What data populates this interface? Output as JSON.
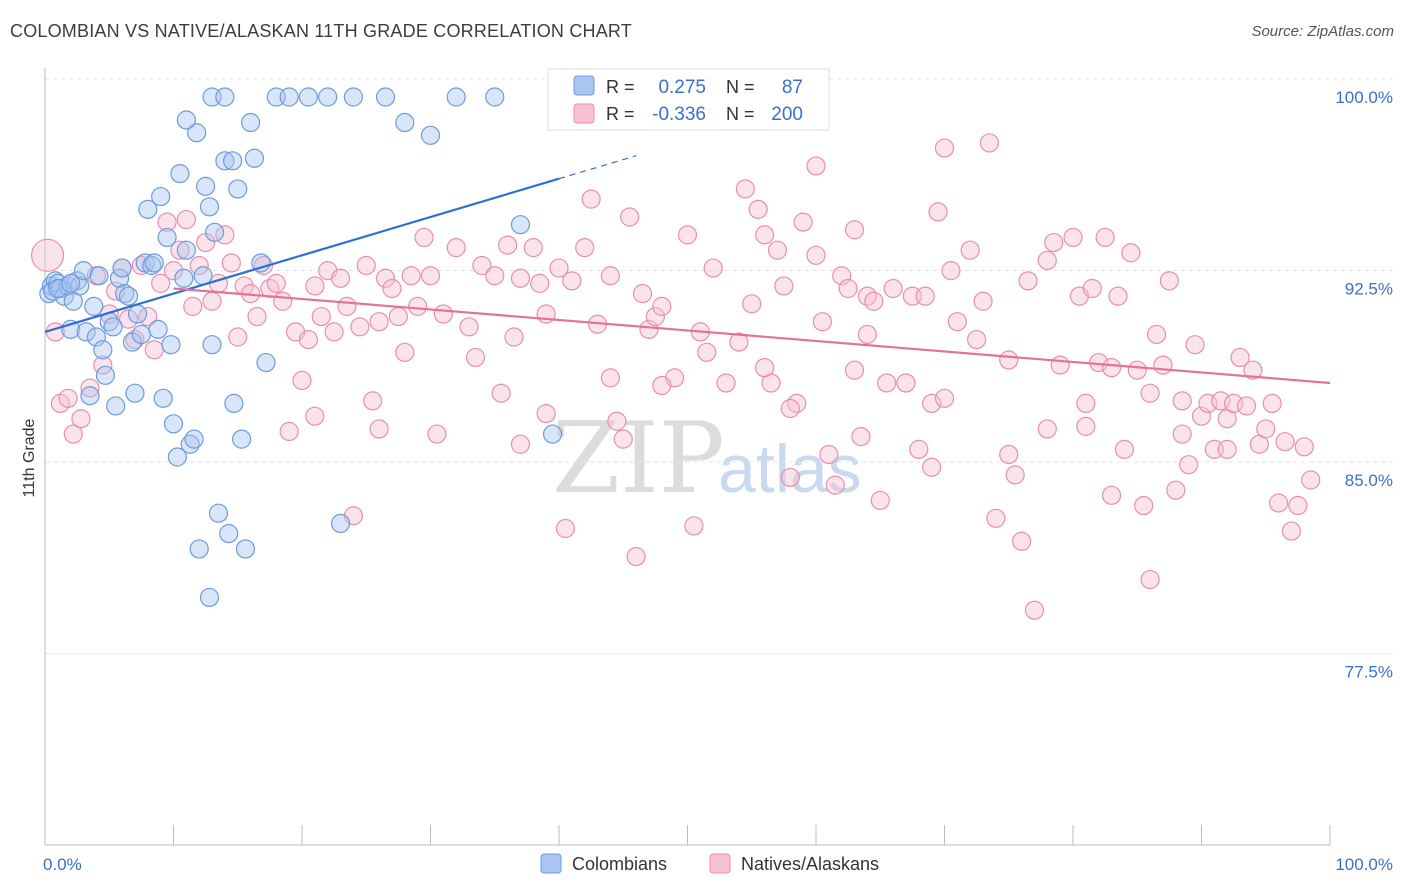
{
  "title": "COLOMBIAN VS NATIVE/ALASKAN 11TH GRADE CORRELATION CHART",
  "source": "Source: ZipAtlas.com",
  "watermark": {
    "zip": "ZIP",
    "atlas": "atlas"
  },
  "colors": {
    "blue": "#6b9be0",
    "blue_fill": "#aac6f0",
    "blue_line": "#2f6fd1",
    "pink": "#e98ead",
    "pink_fill": "#f7c2d4",
    "pink_line": "#e4719c",
    "axis_text": "#3a6fd0"
  },
  "legend": {
    "rows": [
      {
        "r_label": "R =",
        "r_value": "0.275",
        "n_label": "N =",
        "n_value": "87",
        "series": "blue"
      },
      {
        "r_label": "R =",
        "r_value": "-0.336",
        "n_label": "N =",
        "n_value": "200",
        "series": "pink"
      }
    ]
  },
  "bottom_legend": [
    {
      "label": "Colombians",
      "series": "blue"
    },
    {
      "label": "Natives/Alaskans",
      "series": "pink"
    }
  ],
  "chart_data": {
    "type": "scatter",
    "title": "COLOMBIAN VS NATIVE/ALASKAN 11TH GRADE CORRELATION CHART",
    "xlabel": "",
    "ylabel": "11th Grade",
    "xlim": [
      0,
      100
    ],
    "ylim": [
      70,
      100.7
    ],
    "x_tick_labels": [
      "0.0%",
      "100.0%"
    ],
    "y_ticks": [
      77.5,
      85.0,
      92.5,
      100.0
    ],
    "y_tick_labels": [
      "77.5%",
      "85.0%",
      "92.5%",
      "100.0%"
    ],
    "grid": true,
    "legend_position": "top-center",
    "series": [
      {
        "name": "Colombians",
        "color": "blue",
        "trend": {
          "x0": 0,
          "y0": 90.8,
          "x1": 40,
          "y1": 96.8,
          "dashed_to_x": 46
        },
        "points": [
          [
            0.3,
            92.3
          ],
          [
            0.5,
            92.6
          ],
          [
            0.8,
            92.8
          ],
          [
            0.6,
            92.4
          ],
          [
            1.0,
            92.7
          ],
          [
            1.2,
            92.5
          ],
          [
            1.5,
            92.2
          ],
          [
            1.8,
            92.6
          ],
          [
            2.0,
            90.9
          ],
          [
            2.2,
            92.0
          ],
          [
            2.5,
            92.8
          ],
          [
            2.7,
            92.6
          ],
          [
            3.0,
            93.2
          ],
          [
            3.2,
            90.8
          ],
          [
            3.5,
            88.3
          ],
          [
            3.8,
            91.8
          ],
          [
            4.0,
            90.6
          ],
          [
            4.2,
            93.0
          ],
          [
            4.5,
            90.1
          ],
          [
            4.7,
            89.1
          ],
          [
            5.0,
            91.2
          ],
          [
            5.3,
            91.0
          ],
          [
            5.5,
            87.9
          ],
          [
            5.8,
            92.9
          ],
          [
            6.0,
            93.3
          ],
          [
            6.2,
            92.3
          ],
          [
            6.5,
            92.2
          ],
          [
            6.8,
            90.4
          ],
          [
            7.0,
            88.4
          ],
          [
            7.2,
            91.5
          ],
          [
            7.5,
            90.7
          ],
          [
            7.8,
            93.5
          ],
          [
            8.0,
            95.6
          ],
          [
            8.3,
            93.4
          ],
          [
            8.5,
            93.5
          ],
          [
            8.8,
            90.9
          ],
          [
            9.0,
            96.1
          ],
          [
            9.2,
            88.2
          ],
          [
            9.5,
            94.5
          ],
          [
            9.8,
            90.3
          ],
          [
            10.0,
            87.2
          ],
          [
            10.3,
            85.9
          ],
          [
            10.5,
            97.0
          ],
          [
            10.8,
            92.9
          ],
          [
            11.0,
            94.0
          ],
          [
            11.3,
            86.4
          ],
          [
            11.6,
            86.6
          ],
          [
            11.8,
            98.6
          ],
          [
            12.0,
            82.3
          ],
          [
            12.3,
            93.0
          ],
          [
            12.5,
            96.5
          ],
          [
            12.8,
            80.4
          ],
          [
            13.0,
            90.3
          ],
          [
            13.2,
            94.7
          ],
          [
            13.5,
            83.7
          ],
          [
            14.0,
            97.5
          ],
          [
            14.3,
            82.9
          ],
          [
            14.7,
            88.0
          ],
          [
            15.0,
            96.4
          ],
          [
            15.3,
            86.6
          ],
          [
            15.6,
            82.3
          ],
          [
            16.0,
            99.0
          ],
          [
            16.3,
            97.6
          ],
          [
            16.8,
            93.5
          ],
          [
            17.2,
            89.6
          ],
          [
            18.0,
            100.0
          ],
          [
            19.0,
            100.0
          ],
          [
            20.5,
            100.0
          ],
          [
            22.0,
            100.0
          ],
          [
            24.0,
            100.0
          ],
          [
            26.5,
            100.0
          ],
          [
            28.0,
            99.0
          ],
          [
            30.0,
            98.5
          ],
          [
            32.0,
            100.0
          ],
          [
            35.0,
            100.0
          ],
          [
            37.0,
            95.0
          ],
          [
            39.5,
            86.8
          ],
          [
            41.0,
            100.0
          ],
          [
            43.0,
            100.0
          ],
          [
            23.0,
            83.3
          ],
          [
            14.6,
            97.5
          ],
          [
            12.8,
            95.7
          ],
          [
            11.0,
            99.1
          ],
          [
            13.0,
            100.0
          ],
          [
            14.0,
            100.0
          ],
          [
            1.0,
            92.5
          ],
          [
            2.0,
            92.7
          ]
        ]
      },
      {
        "name": "Natives/Alaskans",
        "color": "pink",
        "trend": {
          "x0": 10,
          "y0": 92.5,
          "x1": 100,
          "y1": 88.8
        },
        "points": [
          [
            0.2,
            93.8
          ],
          [
            0.8,
            90.8
          ],
          [
            1.2,
            88.0
          ],
          [
            1.8,
            88.2
          ],
          [
            2.2,
            86.8
          ],
          [
            2.8,
            87.4
          ],
          [
            3.5,
            88.6
          ],
          [
            4.0,
            93.0
          ],
          [
            4.5,
            89.5
          ],
          [
            5.0,
            91.5
          ],
          [
            5.5,
            92.4
          ],
          [
            6.0,
            93.3
          ],
          [
            6.5,
            91.3
          ],
          [
            7.0,
            90.5
          ],
          [
            7.5,
            93.4
          ],
          [
            8.0,
            91.4
          ],
          [
            8.5,
            90.1
          ],
          [
            9.0,
            92.7
          ],
          [
            9.5,
            95.1
          ],
          [
            10.0,
            93.2
          ],
          [
            10.5,
            94.0
          ],
          [
            11.0,
            95.2
          ],
          [
            11.5,
            91.8
          ],
          [
            12.0,
            93.4
          ],
          [
            12.5,
            94.3
          ],
          [
            13.0,
            92.0
          ],
          [
            13.5,
            92.7
          ],
          [
            14.0,
            94.6
          ],
          [
            14.5,
            93.5
          ],
          [
            15.0,
            90.6
          ],
          [
            15.5,
            92.6
          ],
          [
            16.0,
            92.3
          ],
          [
            16.5,
            91.4
          ],
          [
            17.0,
            93.4
          ],
          [
            17.5,
            92.5
          ],
          [
            18.0,
            92.7
          ],
          [
            18.5,
            92.0
          ],
          [
            19.0,
            86.9
          ],
          [
            19.5,
            90.8
          ],
          [
            20.0,
            88.9
          ],
          [
            20.5,
            90.5
          ],
          [
            21.0,
            92.6
          ],
          [
            21.5,
            91.4
          ],
          [
            22.0,
            93.2
          ],
          [
            22.5,
            90.8
          ],
          [
            23.0,
            92.9
          ],
          [
            23.5,
            91.8
          ],
          [
            24.0,
            83.6
          ],
          [
            24.5,
            91.0
          ],
          [
            25.0,
            93.4
          ],
          [
            25.5,
            88.1
          ],
          [
            26.0,
            91.2
          ],
          [
            26.5,
            92.9
          ],
          [
            27.0,
            92.5
          ],
          [
            27.5,
            91.4
          ],
          [
            28.0,
            90.0
          ],
          [
            28.5,
            93.0
          ],
          [
            29.0,
            91.8
          ],
          [
            29.5,
            94.5
          ],
          [
            30.0,
            93.0
          ],
          [
            31.0,
            91.5
          ],
          [
            32.0,
            94.1
          ],
          [
            33.0,
            91.0
          ],
          [
            34.0,
            93.4
          ],
          [
            35.0,
            93.0
          ],
          [
            35.5,
            88.4
          ],
          [
            36.0,
            94.2
          ],
          [
            36.5,
            90.6
          ],
          [
            37.0,
            92.9
          ],
          [
            38.0,
            94.1
          ],
          [
            38.5,
            92.7
          ],
          [
            39.0,
            91.5
          ],
          [
            40.0,
            93.3
          ],
          [
            40.5,
            83.1
          ],
          [
            41.0,
            92.8
          ],
          [
            42.0,
            94.1
          ],
          [
            42.5,
            96.0
          ],
          [
            43.0,
            91.1
          ],
          [
            44.0,
            93.0
          ],
          [
            44.5,
            87.3
          ],
          [
            45.0,
            86.6
          ],
          [
            45.5,
            95.3
          ],
          [
            46.0,
            82.0
          ],
          [
            46.5,
            92.3
          ],
          [
            47.0,
            90.9
          ],
          [
            47.5,
            91.4
          ],
          [
            48.0,
            91.8
          ],
          [
            49.0,
            89.0
          ],
          [
            50.0,
            94.6
          ],
          [
            50.5,
            83.2
          ],
          [
            51.0,
            90.8
          ],
          [
            52.0,
            93.3
          ],
          [
            53.0,
            88.8
          ],
          [
            54.0,
            90.4
          ],
          [
            54.5,
            96.4
          ],
          [
            55.0,
            91.9
          ],
          [
            55.5,
            95.6
          ],
          [
            56.0,
            94.6
          ],
          [
            56.5,
            88.8
          ],
          [
            57.0,
            94.0
          ],
          [
            57.5,
            92.6
          ],
          [
            58.0,
            85.1
          ],
          [
            58.5,
            88.0
          ],
          [
            59.0,
            95.1
          ],
          [
            60.0,
            93.8
          ],
          [
            60.5,
            91.2
          ],
          [
            61.0,
            86.0
          ],
          [
            61.5,
            84.8
          ],
          [
            62.0,
            93.0
          ],
          [
            62.5,
            92.5
          ],
          [
            63.0,
            94.8
          ],
          [
            63.5,
            86.7
          ],
          [
            64.0,
            92.2
          ],
          [
            64.5,
            92.0
          ],
          [
            65.0,
            84.2
          ],
          [
            65.5,
            88.8
          ],
          [
            66.0,
            92.5
          ],
          [
            67.0,
            88.8
          ],
          [
            67.5,
            92.2
          ],
          [
            68.0,
            86.2
          ],
          [
            68.5,
            92.2
          ],
          [
            69.0,
            88.0
          ],
          [
            69.5,
            95.5
          ],
          [
            70.0,
            98.0
          ],
          [
            70.5,
            93.2
          ],
          [
            71.0,
            91.2
          ],
          [
            72.0,
            94.0
          ],
          [
            72.5,
            90.5
          ],
          [
            73.0,
            92.0
          ],
          [
            73.5,
            98.2
          ],
          [
            74.0,
            83.5
          ],
          [
            75.0,
            89.7
          ],
          [
            75.5,
            85.2
          ],
          [
            76.0,
            82.6
          ],
          [
            76.5,
            92.8
          ],
          [
            77.0,
            79.9
          ],
          [
            78.0,
            93.6
          ],
          [
            78.5,
            94.3
          ],
          [
            79.0,
            89.5
          ],
          [
            80.0,
            94.5
          ],
          [
            80.5,
            92.2
          ],
          [
            81.0,
            88.0
          ],
          [
            81.5,
            92.5
          ],
          [
            82.0,
            89.6
          ],
          [
            82.5,
            94.5
          ],
          [
            83.0,
            89.4
          ],
          [
            83.5,
            92.2
          ],
          [
            84.0,
            86.2
          ],
          [
            84.5,
            93.9
          ],
          [
            85.0,
            89.3
          ],
          [
            85.5,
            84.0
          ],
          [
            86.0,
            81.1
          ],
          [
            86.5,
            90.7
          ],
          [
            87.0,
            89.5
          ],
          [
            87.5,
            92.8
          ],
          [
            88.0,
            84.6
          ],
          [
            88.5,
            88.1
          ],
          [
            89.0,
            85.6
          ],
          [
            89.5,
            90.3
          ],
          [
            90.0,
            87.5
          ],
          [
            90.5,
            88.0
          ],
          [
            91.0,
            86.2
          ],
          [
            91.5,
            88.1
          ],
          [
            92.0,
            87.4
          ],
          [
            92.5,
            88.0
          ],
          [
            93.0,
            89.8
          ],
          [
            93.5,
            87.9
          ],
          [
            94.0,
            89.3
          ],
          [
            94.5,
            86.4
          ],
          [
            95.0,
            87.0
          ],
          [
            95.5,
            88.0
          ],
          [
            96.0,
            84.1
          ],
          [
            96.5,
            86.5
          ],
          [
            97.0,
            83.0
          ],
          [
            97.5,
            84.0
          ],
          [
            98.0,
            86.3
          ],
          [
            21.0,
            87.5
          ],
          [
            30.5,
            86.8
          ],
          [
            39.0,
            87.6
          ],
          [
            51.5,
            90.0
          ],
          [
            58.0,
            87.8
          ],
          [
            63.0,
            89.3
          ],
          [
            70.0,
            88.2
          ],
          [
            75.0,
            86.0
          ],
          [
            81.0,
            87.1
          ],
          [
            86.0,
            88.4
          ],
          [
            92.0,
            86.2
          ],
          [
            60.0,
            97.3
          ],
          [
            48.0,
            88.7
          ],
          [
            98.5,
            85.0
          ],
          [
            88.5,
            86.8
          ],
          [
            83.0,
            84.4
          ],
          [
            78.0,
            87.0
          ],
          [
            69.0,
            85.5
          ],
          [
            64.0,
            90.7
          ],
          [
            56.0,
            89.4
          ],
          [
            44.0,
            89.0
          ],
          [
            37.0,
            86.4
          ],
          [
            33.5,
            89.8
          ],
          [
            26.0,
            87.0
          ]
        ]
      }
    ]
  }
}
